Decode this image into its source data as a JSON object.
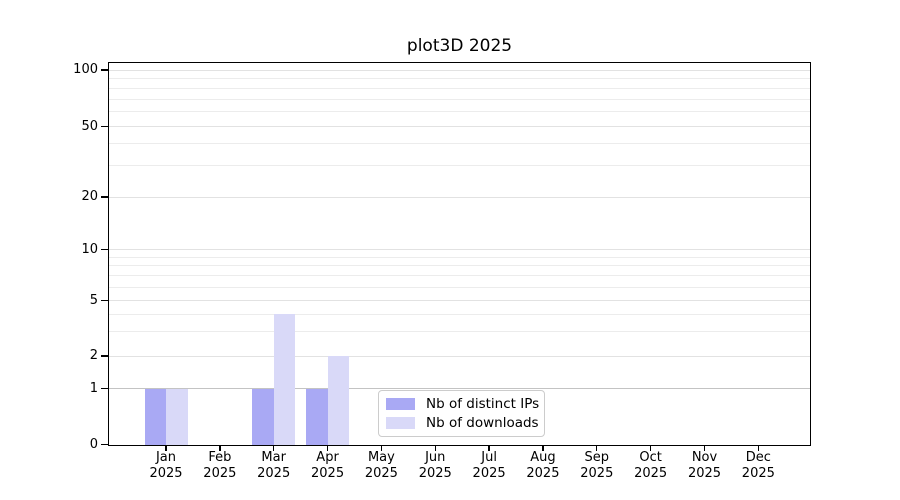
{
  "title": "plot3D 2025",
  "chart_data": {
    "type": "bar",
    "title": "plot3D 2025",
    "xlabel": "",
    "ylabel": "",
    "categories": [
      "Jan 2025",
      "Feb 2025",
      "Mar 2025",
      "Apr 2025",
      "May 2025",
      "Jun 2025",
      "Jul 2025",
      "Aug 2025",
      "Sep 2025",
      "Oct 2025",
      "Nov 2025",
      "Dec 2025"
    ],
    "series": [
      {
        "name": "Nb of distinct IPs",
        "values": [
          1,
          0,
          1,
          1,
          0,
          0,
          0,
          0,
          0,
          0,
          0,
          0
        ],
        "color": "#a9a9f4"
      },
      {
        "name": "Nb of downloads",
        "values": [
          1,
          0,
          4,
          2,
          0,
          0,
          0,
          0,
          0,
          0,
          0,
          0
        ],
        "color": "#d9d9f8"
      }
    ],
    "yscale": "symlog",
    "y_major_ticks": [
      0,
      1,
      2,
      5,
      10,
      20,
      50,
      100
    ],
    "y_minor_ticks": [
      3,
      4,
      6,
      7,
      8,
      9,
      30,
      40,
      60,
      70,
      80,
      90
    ],
    "ylim": [
      0,
      112
    ],
    "grid": "horizontal",
    "legend_position": "lower center inside"
  },
  "colors": {
    "distinct_ips": "#a9a9f4",
    "downloads": "#d9d9f8",
    "grid_minor": "#ececec",
    "grid_major": "#e2e2e2",
    "grid_unit_line": "#c3c3c3",
    "axis": "#000000",
    "legend_border": "#cccccc",
    "background": "#ffffff"
  }
}
